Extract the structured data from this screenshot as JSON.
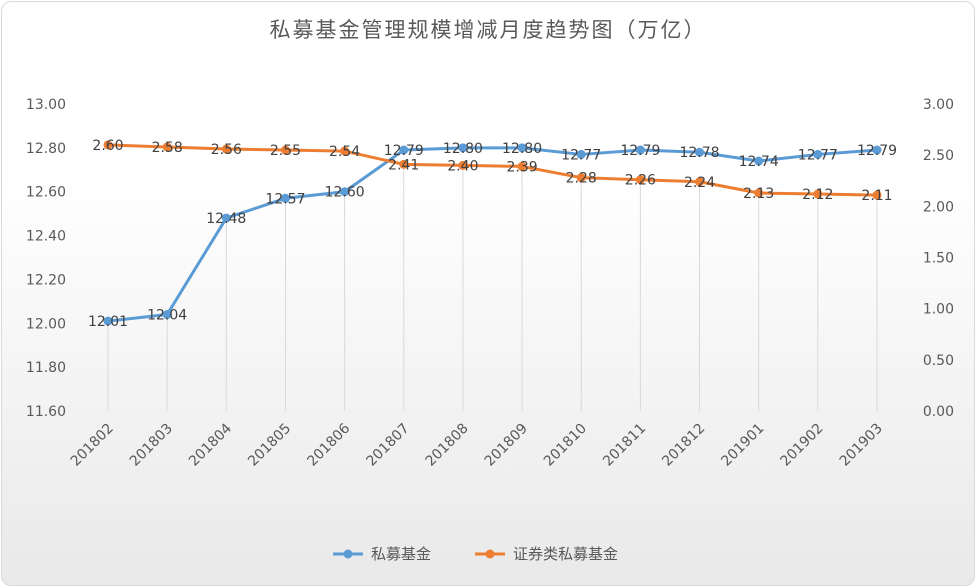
{
  "chart_data": {
    "type": "line",
    "title": "私募基金管理规模增减月度趋势图（万亿）",
    "categories": [
      "201802",
      "201803",
      "201804",
      "201805",
      "201806",
      "201807",
      "201808",
      "201809",
      "201810",
      "201811",
      "201812",
      "201901",
      "201902",
      "201903"
    ],
    "series": [
      {
        "name": "私募基金",
        "axis": "left",
        "color": "#5b9bd5",
        "values": [
          12.01,
          12.04,
          12.48,
          12.57,
          12.6,
          12.79,
          12.8,
          12.8,
          12.77,
          12.79,
          12.78,
          12.74,
          12.77,
          12.79
        ],
        "labels": [
          "12.01",
          "12.04",
          "12.48",
          "12.57",
          "12.60",
          "12.79",
          "12.80",
          "12.80",
          "12.77",
          "12.79",
          "12.78",
          "12.74",
          "12.77",
          "12.79"
        ]
      },
      {
        "name": "证券类私募基金",
        "axis": "right",
        "color": "#ed7d31",
        "values": [
          2.6,
          2.58,
          2.56,
          2.55,
          2.54,
          2.41,
          2.4,
          2.39,
          2.28,
          2.26,
          2.24,
          2.13,
          2.12,
          2.11
        ],
        "labels": [
          "2.60",
          "2.58",
          "2.56",
          "2.55",
          "2.54",
          "2.41",
          "2.40",
          "2.39",
          "2.28",
          "2.26",
          "2.24",
          "2.13",
          "2.12",
          "2.11"
        ]
      }
    ],
    "y_left": {
      "min": 11.6,
      "max": 13.0,
      "ticks": [
        "13.00",
        "12.80",
        "12.60",
        "12.40",
        "12.20",
        "12.00",
        "11.80",
        "11.60"
      ]
    },
    "y_right": {
      "min": 0,
      "max": 3.0,
      "ticks": [
        "3.00",
        "2.50",
        "2.00",
        "1.50",
        "1.00",
        "0.50",
        "0.00"
      ]
    },
    "legend_position": "bottom",
    "grid": "vertical"
  }
}
